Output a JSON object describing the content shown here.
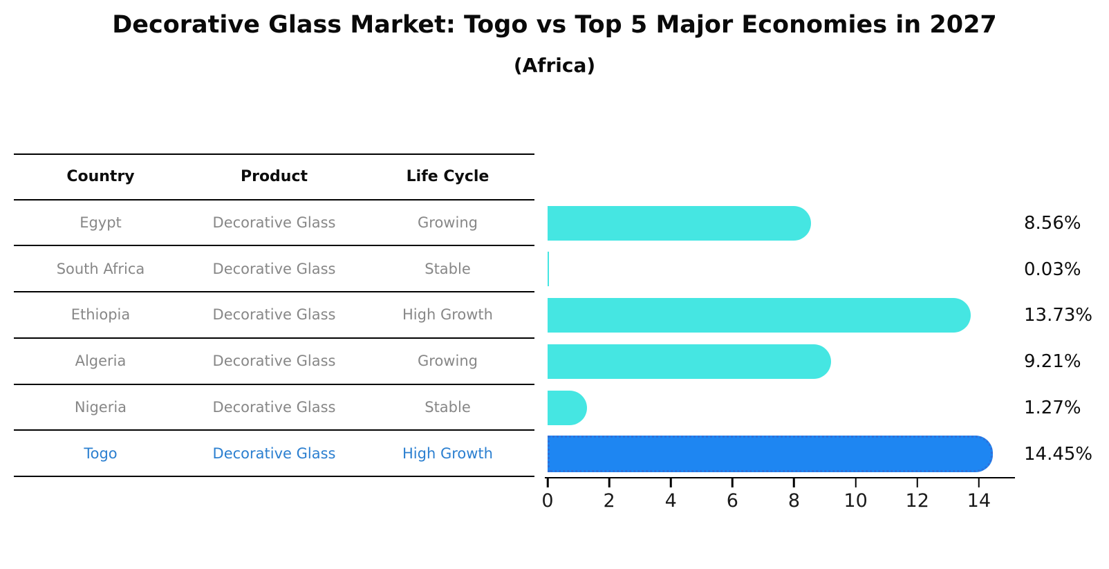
{
  "title": "Decorative Glass Market: Togo vs Top 5 Major Economies in 2027",
  "subtitle": "(Africa)",
  "table": {
    "headers": [
      "Country",
      "Product",
      "Life Cycle"
    ],
    "rows": [
      {
        "country": "Egypt",
        "product": "Decorative Glass",
        "life_cycle": "Growing",
        "highlight": false
      },
      {
        "country": "South Africa",
        "product": "Decorative Glass",
        "life_cycle": "Stable",
        "highlight": false
      },
      {
        "country": "Ethiopia",
        "product": "Decorative Glass",
        "life_cycle": "High Growth",
        "highlight": false
      },
      {
        "country": "Algeria",
        "product": "Decorative Glass",
        "life_cycle": "Growing",
        "highlight": false
      },
      {
        "country": "Nigeria",
        "product": "Decorative Glass",
        "life_cycle": "Stable",
        "highlight": false
      },
      {
        "country": "Togo",
        "product": "Decorative Glass",
        "life_cycle": "High Growth",
        "highlight": true
      }
    ]
  },
  "chart_data": {
    "type": "bar",
    "orientation": "horizontal",
    "title": "Decorative Glass Market: Togo vs Top 5 Major Economies in 2027 (Africa)",
    "categories": [
      "Egypt",
      "South Africa",
      "Ethiopia",
      "Algeria",
      "Nigeria",
      "Togo"
    ],
    "values": [
      8.56,
      0.03,
      13.73,
      9.21,
      1.27,
      14.45
    ],
    "value_labels": [
      "8.56%",
      "0.03%",
      "13.73%",
      "9.21%",
      "1.27%",
      "14.45%"
    ],
    "unit": "%",
    "xlabel": "",
    "ylabel": "",
    "xlim": [
      0,
      15.17
    ],
    "x_ticks": [
      0,
      2,
      4,
      6,
      8,
      10,
      12,
      14
    ],
    "grid": false,
    "legend": false,
    "bar_color": "#45e6e2",
    "highlight_color": "#1e86f2",
    "highlight_border_color": "#2f6fd8",
    "highlight_index": 5
  },
  "colors": {
    "text_default": "#0a0a0a",
    "table_text": "#878787",
    "highlight_text": "#2b7fd0",
    "axis": "#000000"
  }
}
